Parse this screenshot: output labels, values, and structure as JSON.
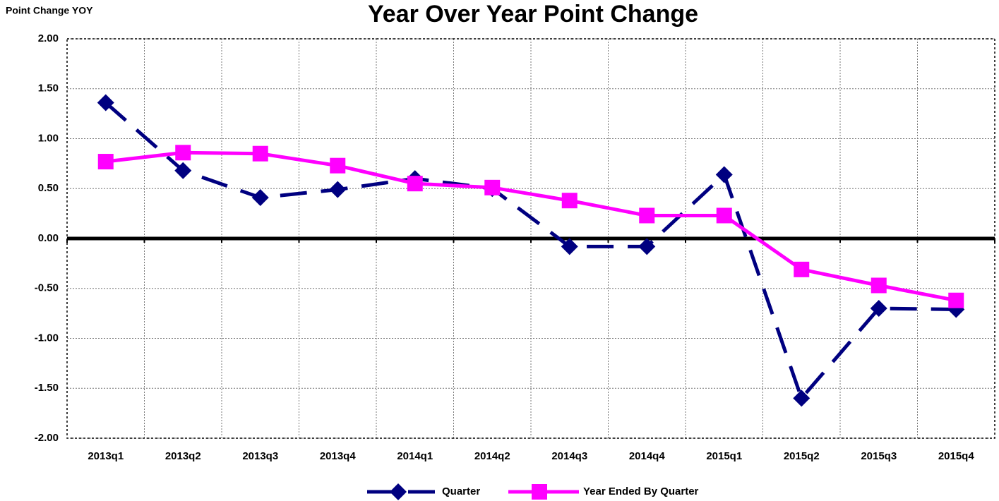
{
  "chart_data": {
    "type": "line",
    "title": "Year Over Year Point Change",
    "y_label": "Point Change YOY",
    "categories": [
      "2013q1",
      "2013q2",
      "2013q3",
      "2013q4",
      "2014q1",
      "2014q2",
      "2014q3",
      "2014q4",
      "2015q1",
      "2015q2",
      "2015q3",
      "2015q4"
    ],
    "series": [
      {
        "name": "Quarter",
        "color": "#000080",
        "dashed": true,
        "marker": "diamond",
        "values": [
          1.36,
          0.68,
          0.41,
          0.49,
          0.6,
          0.5,
          -0.08,
          -0.08,
          0.64,
          -1.6,
          -0.7,
          -0.71
        ]
      },
      {
        "name": "Year Ended By Quarter",
        "color": "#ff00ff",
        "dashed": false,
        "marker": "square",
        "values": [
          0.77,
          0.86,
          0.85,
          0.73,
          0.55,
          0.51,
          0.38,
          0.23,
          0.23,
          -0.31,
          -0.47,
          -0.62
        ]
      }
    ],
    "ylim": [
      -2,
      2
    ],
    "yticks": [
      {
        "value": 2,
        "label": "2.00"
      },
      {
        "value": 1.5,
        "label": "1.50"
      },
      {
        "value": 1,
        "label": "1.00"
      },
      {
        "value": 0.5,
        "label": "0.50"
      },
      {
        "value": 0,
        "label": "0.00"
      },
      {
        "value": -0.5,
        "label": "-0.50"
      },
      {
        "value": -1,
        "label": "-1.00"
      },
      {
        "value": -1.5,
        "label": "-1.50"
      },
      {
        "value": -2,
        "label": "-2.00"
      }
    ],
    "grid": true,
    "legend": "bottom"
  }
}
